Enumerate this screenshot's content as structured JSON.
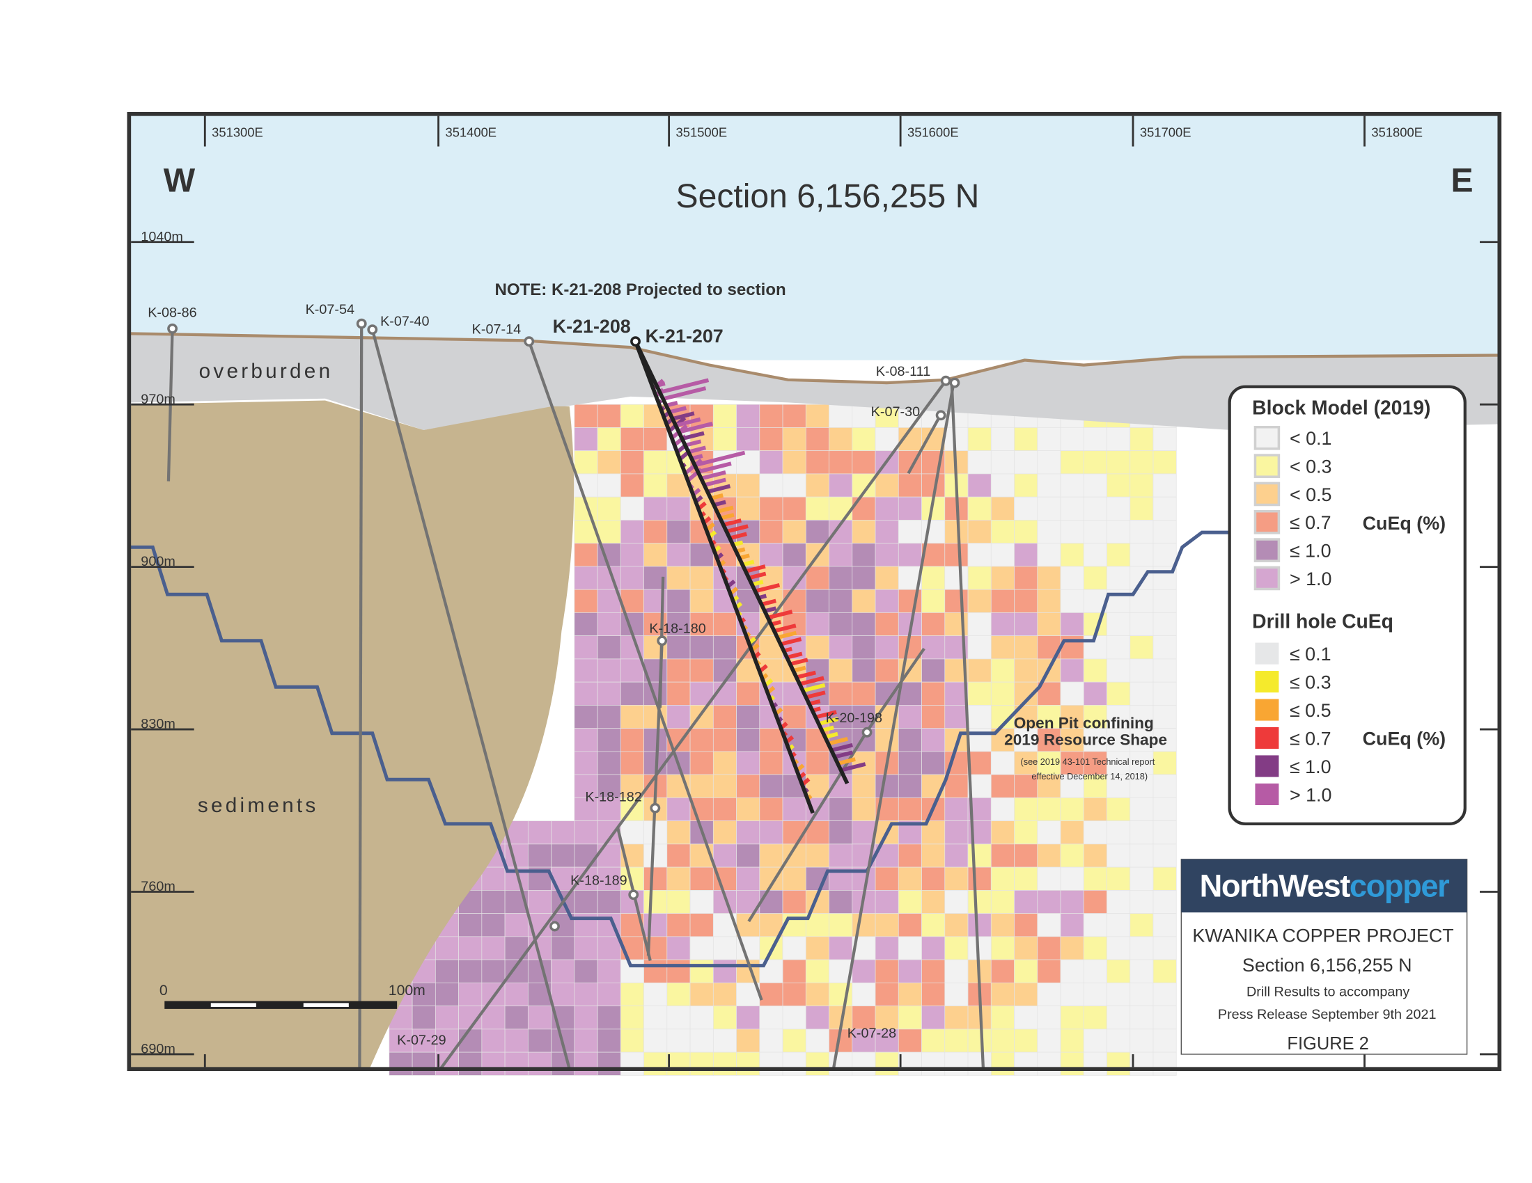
{
  "title": "Section 6,156,255 N",
  "compass": {
    "west": "W",
    "east": "E"
  },
  "eastings": [
    "351300E",
    "351400E",
    "351500E",
    "351600E",
    "351700E",
    "351800E"
  ],
  "elevations": [
    "1040m",
    "970m",
    "900m",
    "830m",
    "760m",
    "690m"
  ],
  "note": "NOTE: K-21-208 Projected to section",
  "units": {
    "overburden": "overburden",
    "sediments": "sediments"
  },
  "drill_holes": {
    "k0886": "K-08-86",
    "k0754": "K-07-54",
    "k0740": "K-07-40",
    "k0714": "K-07-14",
    "k21208": "K-21-208",
    "k21207": "K-21-207",
    "k08111": "K-08-111",
    "k0730": "K-07-30",
    "k18180": "K-18-180",
    "k20198": "K-20-198",
    "k18182": "K-18-182",
    "k18189": "K-18-189",
    "k0729": "K-07-29",
    "k0728": "K-07-28"
  },
  "pit": {
    "line1": "Open Pit confining",
    "line2": "2019 Resource Shape",
    "note1": "(see 2019 43-101 Technical report",
    "note2": "effective December 14, 2018)"
  },
  "scale_bar": {
    "start": "0",
    "end": "100m"
  },
  "legend": {
    "block_title": "Block Model (2019)",
    "block_items": [
      {
        "label": "< 0.1",
        "color": "#f2f2f2"
      },
      {
        "label": "< 0.3",
        "color": "#faf6a0"
      },
      {
        "label": "< 0.5",
        "color": "#fdd08e"
      },
      {
        "label": "≤ 0.7",
        "color": "#f59d84"
      },
      {
        "label": "≤ 1.0",
        "color": "#b48cb5"
      },
      {
        "label": "> 1.0",
        "color": "#d5a6d0"
      }
    ],
    "block_unit": "CuEq (%)",
    "drill_title": "Drill hole CuEq",
    "drill_items": [
      {
        "label": "≤ 0.1",
        "color": "#e6e7e8"
      },
      {
        "label": "≤ 0.3",
        "color": "#f5ea2c"
      },
      {
        "label": "≤ 0.5",
        "color": "#f9a633"
      },
      {
        "label": "≤ 0.7",
        "color": "#ee3a3a"
      },
      {
        "label": "≤ 1.0",
        "color": "#833c85"
      },
      {
        "label": "> 1.0",
        "color": "#b65ba5"
      }
    ],
    "drill_unit": "CuEq (%)"
  },
  "title_block": {
    "logo_dark": "NorthWest",
    "logo_light": "copper",
    "project": "KWANIKA COPPER PROJECT",
    "section": "Section 6,156,255 N",
    "line1": "Drill Results to accompany",
    "line2": "Press Release September 9th 2021",
    "figure": "FIGURE 2"
  },
  "colors": {
    "sky": "#dbeef7",
    "overburden": "#d1d2d4",
    "sediments": "#c6b48f",
    "surface": "#a98b6c",
    "pit_shell": "#4a5f8e",
    "drill_trace": "#737373",
    "logo_bg": "#304461",
    "logo_accent": "#2f9ad8"
  }
}
